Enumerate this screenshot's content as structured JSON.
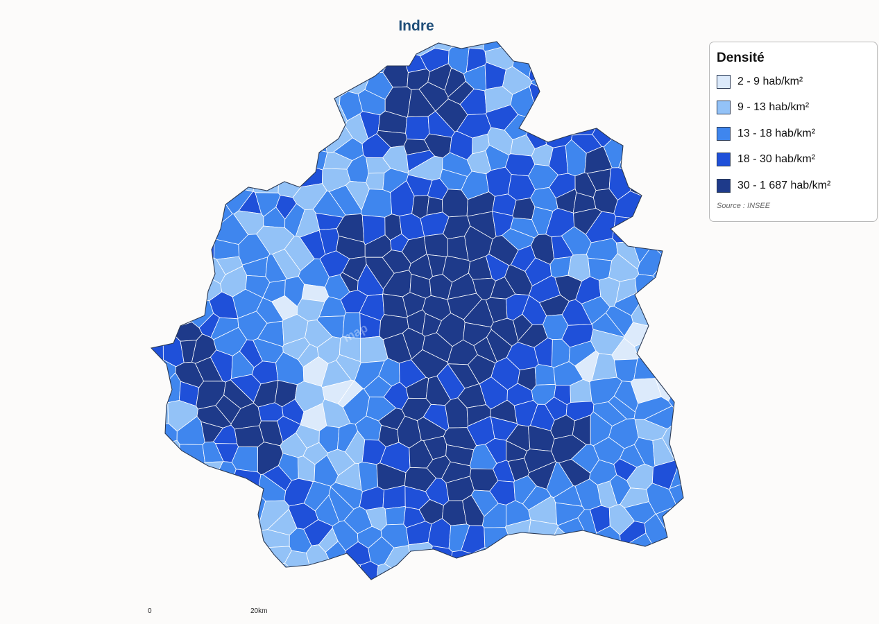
{
  "title": "Indre",
  "legend": {
    "title": "Densité",
    "items": [
      {
        "label": "2 - 9 hab/km²",
        "color": "#dceafb"
      },
      {
        "label": "9 - 13 hab/km²",
        "color": "#93c2f7"
      },
      {
        "label": "13 - 18 hab/km²",
        "color": "#3f86ee"
      },
      {
        "label": "18 - 30 hab/km²",
        "color": "#1f50d9"
      },
      {
        "label": "30 - 1 687 hab/km²",
        "color": "#1e3a8a"
      }
    ],
    "source": "Source : INSEE"
  },
  "scale": {
    "start": "0",
    "end": "20km"
  },
  "watermark": "map"
}
